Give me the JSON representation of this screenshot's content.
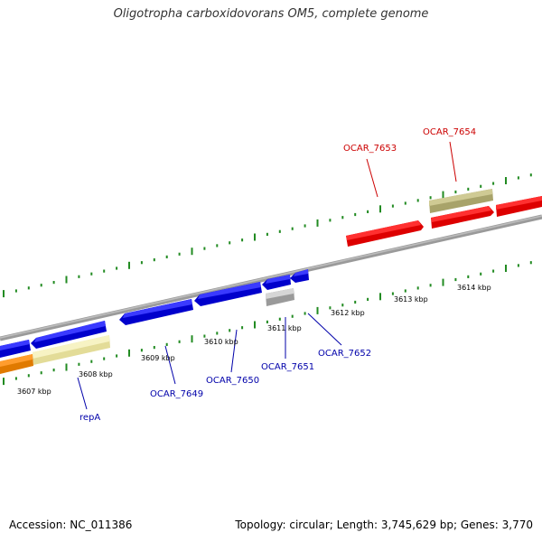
{
  "title": "Oligotropha carboxidovorans OM5, complete genome",
  "footer": {
    "accession": "Accession: NC_011386",
    "summary": "Topology: circular; Length: 3,745,629 bp; Genes: 3,770"
  },
  "colors": {
    "backbone": "#808080",
    "forward_gene": "#ff0000",
    "reverse_gene": "#0000ff",
    "tick": "#228b22",
    "label_forward": "#cc0000",
    "label_reverse": "#0000aa",
    "pseudo_gene": "#bbbbbb",
    "olive_gene": "#b5b07a",
    "pale_gene": "#f2eeb0",
    "orange_gene": "#ff8c00"
  },
  "scale_labels": [
    "3607 kbp",
    "3608 kbp",
    "3609 kbp",
    "3610 kbp",
    "3611 kbp",
    "3612 kbp",
    "3613 kbp",
    "3614 kbp"
  ],
  "gene_labels": {
    "OCAR_7653": "OCAR_7653",
    "OCAR_7654": "OCAR_7654",
    "repA": "repA",
    "OCAR_7649": "OCAR_7649",
    "OCAR_7650": "OCAR_7650",
    "OCAR_7651": "OCAR_7651",
    "OCAR_7652": "OCAR_7652"
  }
}
